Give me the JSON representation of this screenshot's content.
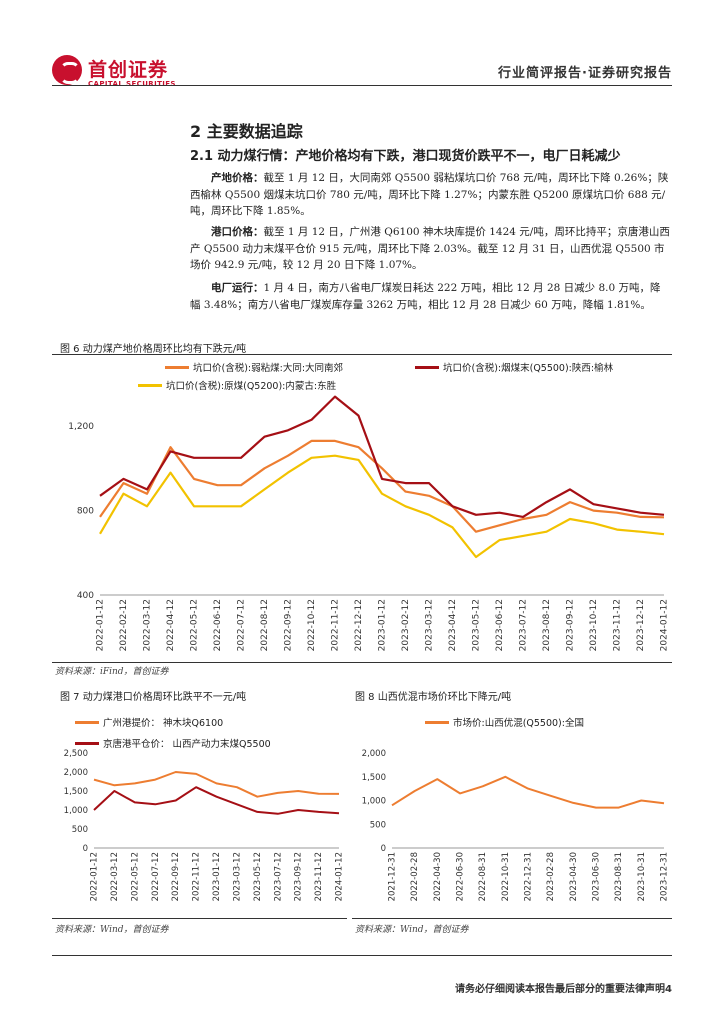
{
  "header": {
    "logo_cn": "首创证券",
    "logo_en": "CAPITAL SECURITIES",
    "title": "行业简评报告·证券研究报告"
  },
  "section": {
    "title": "2 主要数据追踪",
    "subtitle": "2.1 动力煤行情：产地价格均有下跌，港口现货价跌平不一，电厂日耗减少"
  },
  "paragraphs": [
    {
      "label": "产地价格：",
      "text": "截至 1 月 12 日，大同南郊 Q5500 弱粘煤坑口价 768 元/吨，周环比下降 0.26%；陕西榆林 Q5500 烟煤末坑口价 780 元/吨，周环比下降 1.27%；内蒙东胜 Q5200 原煤坑口价 688 元/吨，周环比下降 1.85%。"
    },
    {
      "label": "港口价格：",
      "text": "截至 1 月 12 日，广州港 Q6100 神木块库提价 1424 元/吨，周环比持平；京唐港山西产 Q5500 动力末煤平仓价 915 元/吨，周环比下降 2.03%。截至 12 月 31 日，山西优混 Q5500 市场价 942.9 元/吨，较 12 月 20 日下降 1.07%。"
    },
    {
      "label": "电厂运行：",
      "text": "1 月 4 日，南方八省电厂煤炭日耗达 222 万吨，相比 12 月 28 日减少 8.0 万吨，降幅 3.48%；南方八省电厂煤炭库存量 3262 万吨，相比 12 月 28 日减少 60 万吨，降幅 1.81%。"
    }
  ],
  "fig6": {
    "title": "图 6 动力煤产地价格周环比均有下跌元/吨",
    "source": "资料来源：iFind，首创证券",
    "legend": [
      "坑口价(含税):弱粘煤:大同:大同南郊",
      "坑口价(含税):烟煤末(Q5500):陕西:榆林",
      "坑口价(含税):原煤(Q5200):内蒙古:东胜"
    ],
    "colors": [
      "#ed7d31",
      "#a50f15",
      "#f2c200"
    ],
    "chart_data": {
      "type": "line",
      "x": [
        "2022-01-12",
        "2022-02-12",
        "2022-03-12",
        "2022-04-12",
        "2022-05-12",
        "2022-06-12",
        "2022-07-12",
        "2022-08-12",
        "2022-09-12",
        "2022-10-12",
        "2022-11-12",
        "2022-12-12",
        "2023-01-12",
        "2023-02-12",
        "2023-03-12",
        "2023-04-12",
        "2023-05-12",
        "2023-06-12",
        "2023-07-12",
        "2023-08-12",
        "2023-09-12",
        "2023-10-12",
        "2023-11-12",
        "2023-12-12",
        "2024-01-12"
      ],
      "series": [
        {
          "name": "坑口价(含税):弱粘煤:大同:大同南郊",
          "values": [
            770,
            930,
            880,
            1100,
            950,
            920,
            920,
            1000,
            1060,
            1130,
            1130,
            1100,
            1000,
            890,
            870,
            820,
            700,
            730,
            760,
            780,
            840,
            800,
            790,
            770,
            768
          ]
        },
        {
          "name": "坑口价(含税):烟煤末(Q5500):陕西:榆林",
          "values": [
            870,
            950,
            900,
            1080,
            1050,
            1050,
            1050,
            1150,
            1180,
            1230,
            1340,
            1250,
            950,
            930,
            930,
            820,
            780,
            790,
            770,
            840,
            900,
            830,
            810,
            790,
            780
          ]
        },
        {
          "name": "坑口价(含税):原煤(Q5200):内蒙古:东胜",
          "values": [
            690,
            880,
            820,
            980,
            820,
            820,
            820,
            900,
            980,
            1050,
            1060,
            1040,
            880,
            820,
            780,
            720,
            580,
            660,
            680,
            700,
            760,
            740,
            710,
            700,
            688
          ]
        }
      ],
      "ylim": [
        400,
        1300
      ],
      "yticks": [
        "400",
        "800",
        "1,200"
      ]
    }
  },
  "fig7": {
    "title": "图 7 动力煤港口价格周环比跌平不一元/吨",
    "source": "资料来源：Wind，首创证券",
    "legend": [
      "广州港提价： 神木块Q6100",
      "京唐港平仓价： 山西产动力末煤Q5500"
    ],
    "colors": [
      "#ed7d31",
      "#a50f15"
    ],
    "chart_data": {
      "type": "line",
      "x": [
        "2022-01-12",
        "2022-03-12",
        "2022-05-12",
        "2022-07-12",
        "2022-09-12",
        "2022-11-12",
        "2023-01-12",
        "2023-03-12",
        "2023-05-12",
        "2023-07-12",
        "2023-09-12",
        "2023-11-12",
        "2024-01-12"
      ],
      "series": [
        {
          "name": "广州港提价： 神木块Q6100",
          "values": [
            1800,
            1650,
            1700,
            1800,
            2000,
            1950,
            1700,
            1600,
            1350,
            1450,
            1500,
            1430,
            1424
          ]
        },
        {
          "name": "京唐港平仓价： 山西产动力末煤Q5500",
          "values": [
            1000,
            1500,
            1200,
            1150,
            1250,
            1600,
            1350,
            1150,
            950,
            900,
            1000,
            950,
            915
          ]
        }
      ],
      "ylim": [
        0,
        2500
      ],
      "yticks": [
        "0",
        "500",
        "1,000",
        "1,500",
        "2,000",
        "2,500"
      ]
    }
  },
  "fig8": {
    "title": "图 8 山西优混市场价环比下降元/吨",
    "source": "资料来源：Wind，首创证券",
    "legend": [
      "市场价:山西优混(Q5500):全国"
    ],
    "colors": [
      "#ed7d31"
    ],
    "chart_data": {
      "type": "line",
      "x": [
        "2021-12-31",
        "2022-02-28",
        "2022-04-30",
        "2022-06-30",
        "2022-08-31",
        "2022-10-31",
        "2022-12-31",
        "2023-02-28",
        "2023-04-30",
        "2023-06-30",
        "2023-08-31",
        "2023-10-31",
        "2023-12-31"
      ],
      "series": [
        {
          "name": "市场价:山西优混(Q5500):全国",
          "values": [
            900,
            1200,
            1450,
            1150,
            1300,
            1500,
            1250,
            1100,
            950,
            850,
            850,
            1000,
            943
          ]
        }
      ],
      "ylim": [
        0,
        2000
      ],
      "yticks": [
        "0",
        "500",
        "1,000",
        "1,500",
        "2,000"
      ]
    }
  },
  "footer": "请务必仔细阅读本报告最后部分的重要法律声明4"
}
